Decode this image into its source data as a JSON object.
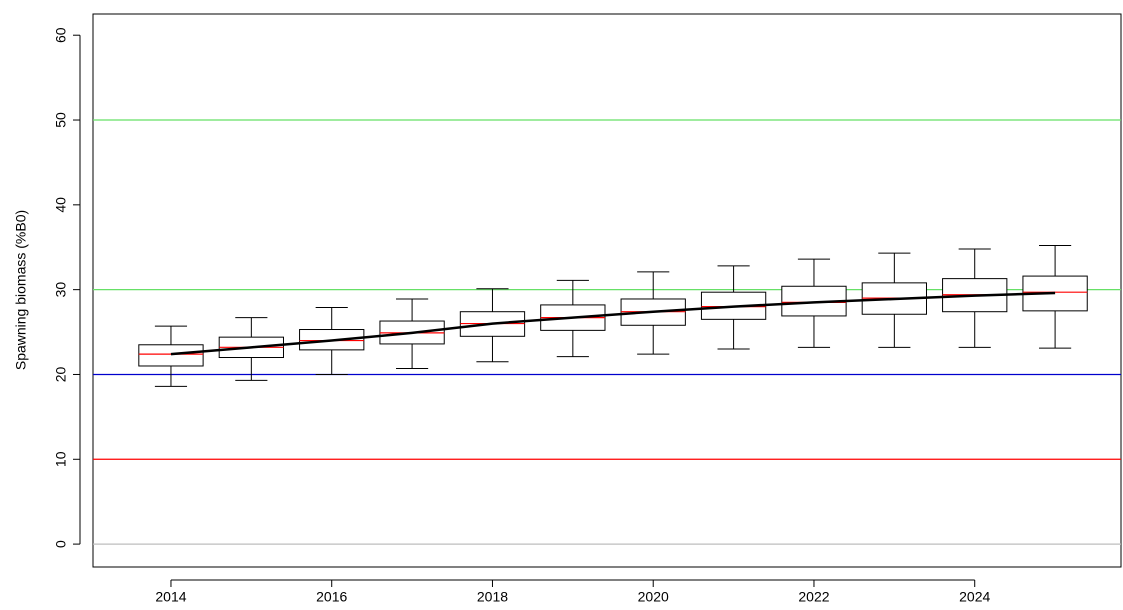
{
  "chart_data": {
    "type": "boxplot",
    "ylabel": "Spawning biomass (%B0)",
    "x": [
      2014,
      2015,
      2016,
      2017,
      2018,
      2019,
      2020,
      2021,
      2022,
      2023,
      2024,
      2025
    ],
    "lower": [
      18.6,
      19.3,
      20.0,
      20.7,
      21.5,
      22.1,
      22.4,
      23.0,
      23.2,
      23.2,
      23.2,
      23.1
    ],
    "q1": [
      21.0,
      22.0,
      22.9,
      23.6,
      24.5,
      25.2,
      25.8,
      26.5,
      26.9,
      27.1,
      27.4,
      27.5
    ],
    "median": [
      22.4,
      23.2,
      24.0,
      24.9,
      26.0,
      26.7,
      27.4,
      28.0,
      28.5,
      29.0,
      29.4,
      29.7
    ],
    "q3": [
      23.5,
      24.4,
      25.3,
      26.3,
      27.4,
      28.2,
      28.9,
      29.7,
      30.4,
      30.8,
      31.3,
      31.6
    ],
    "upper": [
      25.7,
      26.7,
      27.9,
      28.9,
      30.1,
      31.1,
      32.1,
      32.8,
      33.6,
      34.3,
      34.8,
      35.2
    ],
    "median_color": "#ff0000",
    "line": {
      "color": "#000000",
      "values": [
        22.4,
        23.2,
        24.0,
        24.9,
        26.0,
        26.7,
        27.4,
        28.0,
        28.5,
        28.9,
        29.3,
        29.6
      ]
    },
    "hlines": [
      {
        "value": 0,
        "color": "#bebebe"
      },
      {
        "value": 10,
        "color": "#ff0000"
      },
      {
        "value": 20,
        "color": "#0000cd"
      },
      {
        "value": 30,
        "color": "#66e066"
      },
      {
        "value": 50,
        "color": "#66e066"
      }
    ],
    "xlim": [
      2013.03,
      2025.82
    ],
    "xticks": [
      2014,
      2016,
      2018,
      2020,
      2022,
      2024
    ],
    "ylim": [
      -2.7,
      62.5
    ],
    "yticks": [
      0,
      10,
      20,
      30,
      40,
      50,
      60
    ]
  }
}
